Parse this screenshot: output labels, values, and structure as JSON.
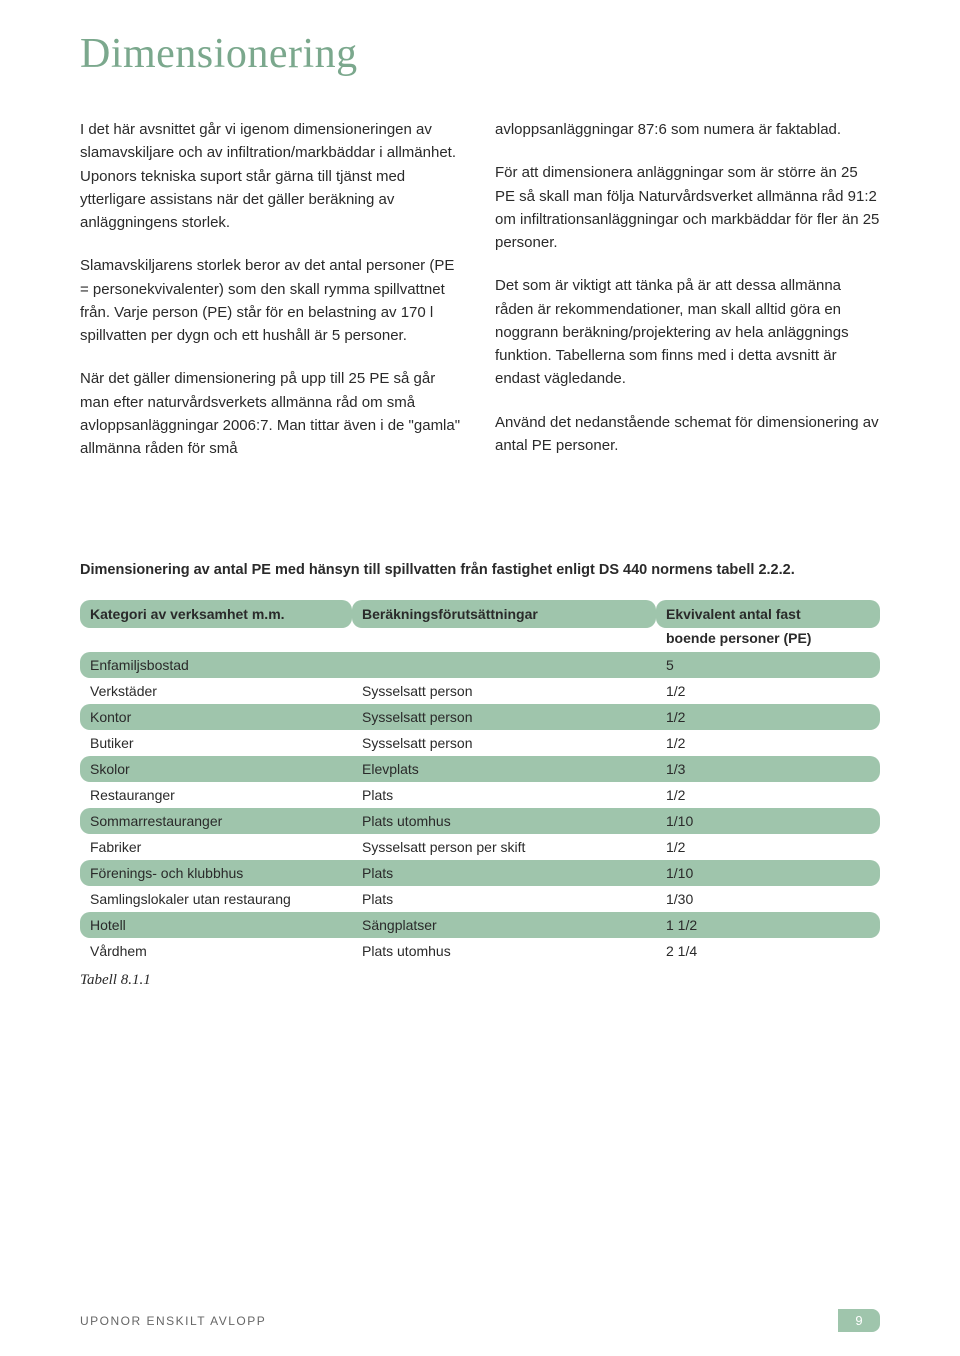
{
  "title": "Dimensionering",
  "left": {
    "p1": "I det här avsnittet går vi igenom dimensioneringen av slamavskiljare och av infiltration/markbäddar i allmänhet. Uponors tekniska suport står gärna till tjänst med ytterligare assistans när det gäller beräkning av anläggningens storlek.",
    "p2": "Slamavskiljarens storlek beror av det antal personer (PE = personekvivalenter) som den skall rymma spillvattnet från. Varje person (PE) står för en belastning av 170 l spillvatten per dygn och ett hushåll är 5 personer.",
    "p3": "När det gäller dimensionering på upp till 25 PE så går man efter naturvårdsverkets allmänna råd om små avloppsanläggningar 2006:7. Man tittar även i de \"gamla\" allmänna råden för små"
  },
  "right": {
    "p1": "avloppsanläggningar 87:6 som numera är faktablad.",
    "p2": "För att dimensionera anläggningar som är större än 25 PE så skall man följa Naturvårdsverket allmänna råd 91:2 om infiltrationsanläggningar och markbäddar för fler än 25 personer.",
    "p3": "Det som är viktigt att tänka på är att dessa allmänna råden är rekommendationer, man skall alltid göra en noggrann beräkning/projektering av hela anläggnings funktion. Tabellerna som finns med i detta avsnitt är endast vägledande.",
    "p4": "Använd det nedanstående schemat för dimensionering av antal PE personer."
  },
  "table": {
    "intro": "Dimensionering av antal PE med hänsyn till spillvatten från fastighet enligt DS 440 normens tabell 2.2.2.",
    "headers": {
      "cat": "Kategori av verksamhet m.m.",
      "cond": "Beräkningsförutsättningar",
      "eq": "Ekvivalent antal fast",
      "eq_sub": "boende personer (PE)"
    },
    "rows": [
      {
        "cat": "Enfamiljsbostad",
        "cond": "",
        "eq": "5",
        "shaded": true
      },
      {
        "cat": "Verkstäder",
        "cond": "Sysselsatt person",
        "eq": "1/2",
        "shaded": false
      },
      {
        "cat": "Kontor",
        "cond": "Sysselsatt person",
        "eq": "1/2",
        "shaded": true
      },
      {
        "cat": "Butiker",
        "cond": "Sysselsatt person",
        "eq": "1/2",
        "shaded": false
      },
      {
        "cat": "Skolor",
        "cond": "Elevplats",
        "eq": "1/3",
        "shaded": true
      },
      {
        "cat": "Restauranger",
        "cond": "Plats",
        "eq": "1/2",
        "shaded": false
      },
      {
        "cat": "Sommarrestauranger",
        "cond": "Plats utomhus",
        "eq": "1/10",
        "shaded": true
      },
      {
        "cat": "Fabriker",
        "cond": "Sysselsatt person per skift",
        "eq": "1/2",
        "shaded": false
      },
      {
        "cat": "Förenings- och klubbhus",
        "cond": "Plats",
        "eq": "1/10",
        "shaded": true
      },
      {
        "cat": "Samlingslokaler utan restaurang",
        "cond": "Plats",
        "eq": "1/30",
        "shaded": false
      },
      {
        "cat": "Hotell",
        "cond": "Sängplatser",
        "eq": "1 1/2",
        "shaded": true
      },
      {
        "cat": "Vårdhem",
        "cond": "Plats utomhus",
        "eq": "2 1/4",
        "shaded": false
      }
    ],
    "caption": "Tabell 8.1.1"
  },
  "footer": {
    "left": "UPONOR  ENSKILT AVLOPP",
    "page": "9"
  },
  "colors": {
    "title": "#7ba88d",
    "accent": "#9fc5ac",
    "text": "#2a2a2a",
    "footer_text": "#666666"
  }
}
